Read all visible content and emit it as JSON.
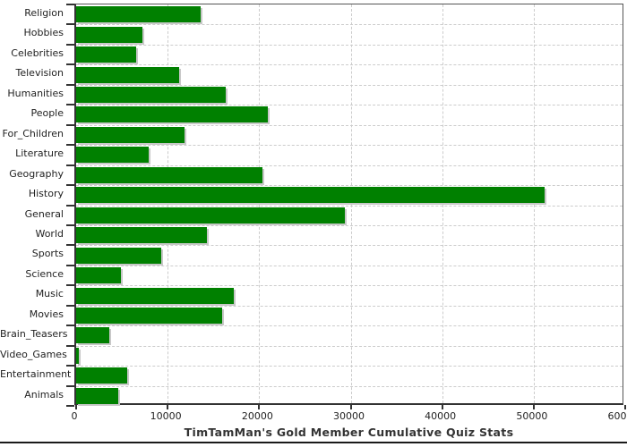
{
  "chart_data": {
    "type": "bar",
    "orientation": "horizontal",
    "title": "TimTamMan's Gold Member Cumulative Quiz Stats",
    "categories": [
      "Religion",
      "Hobbies",
      "Celebrities",
      "Television",
      "Humanities",
      "People",
      "For_Children",
      "Literature",
      "Geography",
      "History",
      "General",
      "World",
      "Sports",
      "Science",
      "Music",
      "Movies",
      "Brain_Teasers",
      "Video_Games",
      "Entertainment",
      "Animals"
    ],
    "values": [
      13600,
      7200,
      6600,
      11300,
      16300,
      20900,
      11800,
      7900,
      20400,
      51200,
      29400,
      14300,
      9300,
      4900,
      17200,
      16000,
      3600,
      250,
      5600,
      4600
    ],
    "xlabel": "",
    "ylabel": "",
    "xlim": [
      0,
      60000
    ],
    "x_ticks": [
      0,
      10000,
      20000,
      30000,
      40000,
      50000,
      60000
    ],
    "x_tick_labels": [
      "0",
      "10000",
      "20000",
      "30000",
      "40000",
      "50000",
      "60000"
    ],
    "grid": "dashed",
    "legend": "none",
    "colors": {
      "bar": "#008000",
      "bar_shadow": "#c8c8c8",
      "gridline": "#cccccc",
      "axis": "#333333",
      "text": "#222222",
      "background": "#ffffff"
    }
  }
}
